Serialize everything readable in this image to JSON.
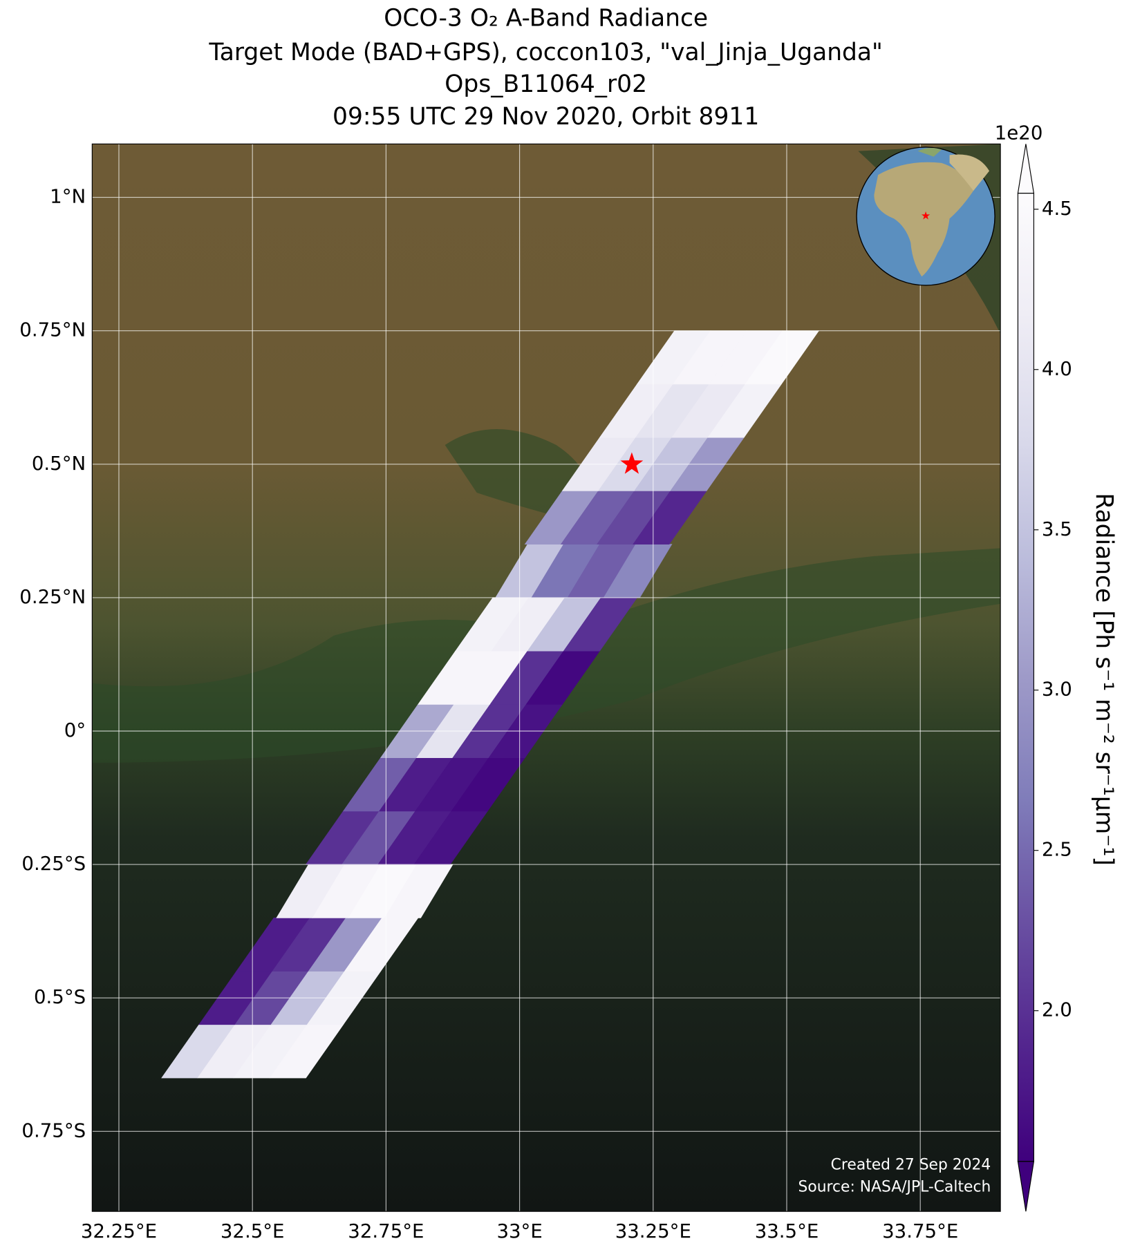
{
  "chart_data": {
    "type": "map",
    "title": [
      "OCO-3 O₂ A-Band Radiance",
      "Target Mode (BAD+GPS), coccon103, \"val_Jinja_Uganda\"",
      "Ops_B11064_r02",
      "09:55 UTC 29 Nov 2020, Orbit 8911"
    ],
    "xlim": [
      32.2,
      33.9
    ],
    "ylim": [
      -0.9,
      1.1
    ],
    "xticks": [
      {
        "value": 32.25,
        "label": "32.25°E"
      },
      {
        "value": 32.5,
        "label": "32.5°E"
      },
      {
        "value": 32.75,
        "label": "32.75°E"
      },
      {
        "value": 33,
        "label": "33°E"
      },
      {
        "value": 33.25,
        "label": "33.25°E"
      },
      {
        "value": 33.5,
        "label": "33.5°E"
      },
      {
        "value": 33.75,
        "label": "33.75°E"
      }
    ],
    "yticks": [
      {
        "value": -0.75,
        "label": "0.75°S"
      },
      {
        "value": -0.5,
        "label": "0.5°S"
      },
      {
        "value": -0.25,
        "label": "0.25°S"
      },
      {
        "value": 0,
        "label": "0°"
      },
      {
        "value": 0.25,
        "label": "0.25°N"
      },
      {
        "value": 0.5,
        "label": "0.5°N"
      },
      {
        "value": 0.75,
        "label": "0.75°N"
      },
      {
        "value": 1,
        "label": "1°N"
      }
    ],
    "grid": true,
    "colorbar": {
      "label": "Radiance [Ph s⁻¹ m⁻² sr⁻¹μm⁻¹]",
      "exponent": "1e20",
      "lim": [
        1.53,
        4.55
      ],
      "ticks": [
        {
          "value": 2,
          "label": "2.0"
        },
        2.5,
        {
          "value": 3,
          "label": "3.0"
        },
        3.5,
        {
          "value": 4,
          "label": "4.0"
        },
        4.5
      ],
      "colors": [
        "#3f007d",
        "#54278f",
        "#6a51a3",
        "#807dba",
        "#9e9ac8",
        "#bcbddc",
        "#dadaeb",
        "#efedf5",
        "#fcfbfd"
      ]
    },
    "swath": {
      "lat": [
        -0.6,
        -0.5,
        -0.4,
        -0.3,
        -0.2,
        -0.1,
        0,
        0.1,
        0.2,
        0.3,
        0.4,
        0.5,
        0.6,
        0.7
      ],
      "lon": [
        32.5,
        32.57,
        32.64,
        32.71,
        32.77,
        32.84,
        32.91,
        32.98,
        33.05,
        33.12,
        33.18,
        33.25,
        33.32,
        33.39
      ],
      "values": [
        [
          3.8,
          4.2,
          4.3,
          4.4
        ],
        [
          1.8,
          2.2,
          3.5,
          4.3
        ],
        [
          1.8,
          2.0,
          3.0,
          4.4
        ],
        [
          4.2,
          4.4,
          4.5,
          4.4
        ],
        [
          2.0,
          2.3,
          1.8,
          1.7
        ],
        [
          2.4,
          1.8,
          1.7,
          1.6
        ],
        [
          3.2,
          4.0,
          2.0,
          1.7
        ],
        [
          4.4,
          4.4,
          2.0,
          1.6
        ],
        [
          4.3,
          4.2,
          3.5,
          2.0
        ],
        [
          3.5,
          2.6,
          2.4,
          2.8
        ],
        [
          3.0,
          2.4,
          2.2,
          1.9
        ],
        [
          4.1,
          3.8,
          3.5,
          3.0
        ],
        [
          4.2,
          4.0,
          4.1,
          4.3
        ],
        [
          4.3,
          4.4,
          4.4,
          4.5
        ]
      ]
    },
    "target": {
      "lon": 33.21,
      "lat": 0.5,
      "color": "#ff0000"
    },
    "annotations": [
      "Created 27 Sep 2024",
      "Source: NASA/JPL-Caltech"
    ]
  }
}
